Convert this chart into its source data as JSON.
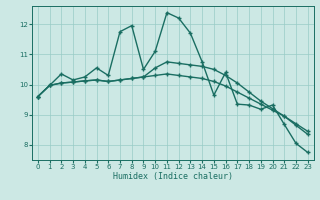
{
  "xlabel": "Humidex (Indice chaleur)",
  "bg_color": "#cce8e4",
  "line_color": "#1a6e62",
  "grid_color": "#99ccc6",
  "xlim": [
    -0.5,
    23.5
  ],
  "ylim": [
    7.5,
    12.6
  ],
  "xticks": [
    0,
    1,
    2,
    3,
    4,
    5,
    6,
    7,
    8,
    9,
    10,
    11,
    12,
    13,
    14,
    15,
    16,
    17,
    18,
    19,
    20,
    21,
    22,
    23
  ],
  "yticks": [
    8,
    9,
    10,
    11,
    12
  ],
  "line1_x": [
    0,
    1,
    2,
    3,
    4,
    5,
    6,
    7,
    8,
    9,
    10,
    11,
    12,
    13,
    14,
    15,
    16,
    17,
    18,
    19,
    20,
    21,
    22,
    23
  ],
  "line1_y": [
    9.6,
    9.97,
    10.35,
    10.15,
    10.25,
    10.55,
    10.3,
    11.75,
    11.95,
    10.5,
    11.1,
    12.38,
    12.2,
    11.7,
    10.75,
    9.65,
    10.4,
    9.35,
    9.32,
    9.18,
    9.32,
    8.68,
    8.05,
    7.75
  ],
  "line2_x": [
    0,
    1,
    2,
    3,
    4,
    5,
    6,
    7,
    8,
    9,
    10,
    11,
    12,
    13,
    14,
    15,
    16,
    17,
    18,
    19,
    20,
    21,
    22,
    23
  ],
  "line2_y": [
    9.6,
    9.97,
    10.05,
    10.08,
    10.12,
    10.15,
    10.1,
    10.15,
    10.2,
    10.25,
    10.3,
    10.35,
    10.3,
    10.25,
    10.2,
    10.1,
    9.95,
    9.75,
    9.55,
    9.35,
    9.15,
    8.95,
    8.7,
    8.45
  ],
  "line3_x": [
    0,
    1,
    2,
    3,
    4,
    5,
    6,
    7,
    8,
    9,
    10,
    11,
    12,
    13,
    14,
    15,
    16,
    17,
    18,
    19,
    20,
    21,
    22,
    23
  ],
  "line3_y": [
    9.6,
    9.97,
    10.05,
    10.08,
    10.12,
    10.15,
    10.1,
    10.15,
    10.2,
    10.25,
    10.55,
    10.75,
    10.7,
    10.65,
    10.6,
    10.5,
    10.3,
    10.05,
    9.75,
    9.45,
    9.2,
    8.95,
    8.65,
    8.35
  ]
}
